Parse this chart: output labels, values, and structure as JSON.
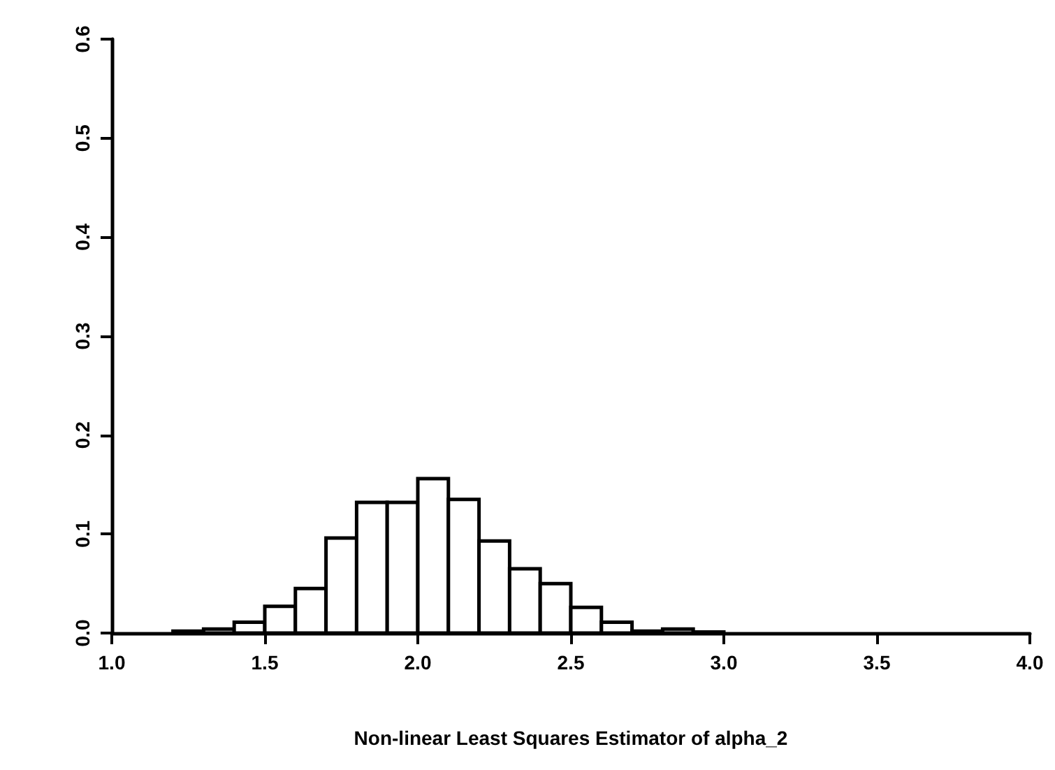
{
  "chart_data": {
    "type": "histogram",
    "xlabel": "Non-linear Least Squares Estimator of alpha_2",
    "bins": [
      1.2,
      1.3,
      1.4,
      1.5,
      1.6,
      1.7,
      1.8,
      1.9,
      2.0,
      2.1,
      2.2,
      2.3,
      2.4,
      2.5,
      2.6,
      2.7,
      2.8,
      2.9,
      3.0
    ],
    "values": [
      0.002,
      0.004,
      0.011,
      0.027,
      0.045,
      0.096,
      0.132,
      0.132,
      0.156,
      0.135,
      0.093,
      0.065,
      0.05,
      0.026,
      0.011,
      0.002,
      0.004,
      0.001
    ],
    "color": "#ffffff",
    "xlim": [
      1.0,
      4.0
    ],
    "xticks": [
      {
        "value": 1,
        "label": "1.0"
      },
      1.5,
      {
        "value": 2,
        "label": "2.0"
      },
      2.5,
      {
        "value": 3,
        "label": "3.0"
      },
      3.5,
      {
        "value": 4,
        "label": "4.0"
      }
    ],
    "ylim": [
      0,
      0.6
    ],
    "yticks": [
      {
        "value": 0,
        "label": "0.0"
      },
      0.1,
      0.2,
      0.3,
      0.4,
      0.5,
      0.6
    ],
    "grid": false
  }
}
